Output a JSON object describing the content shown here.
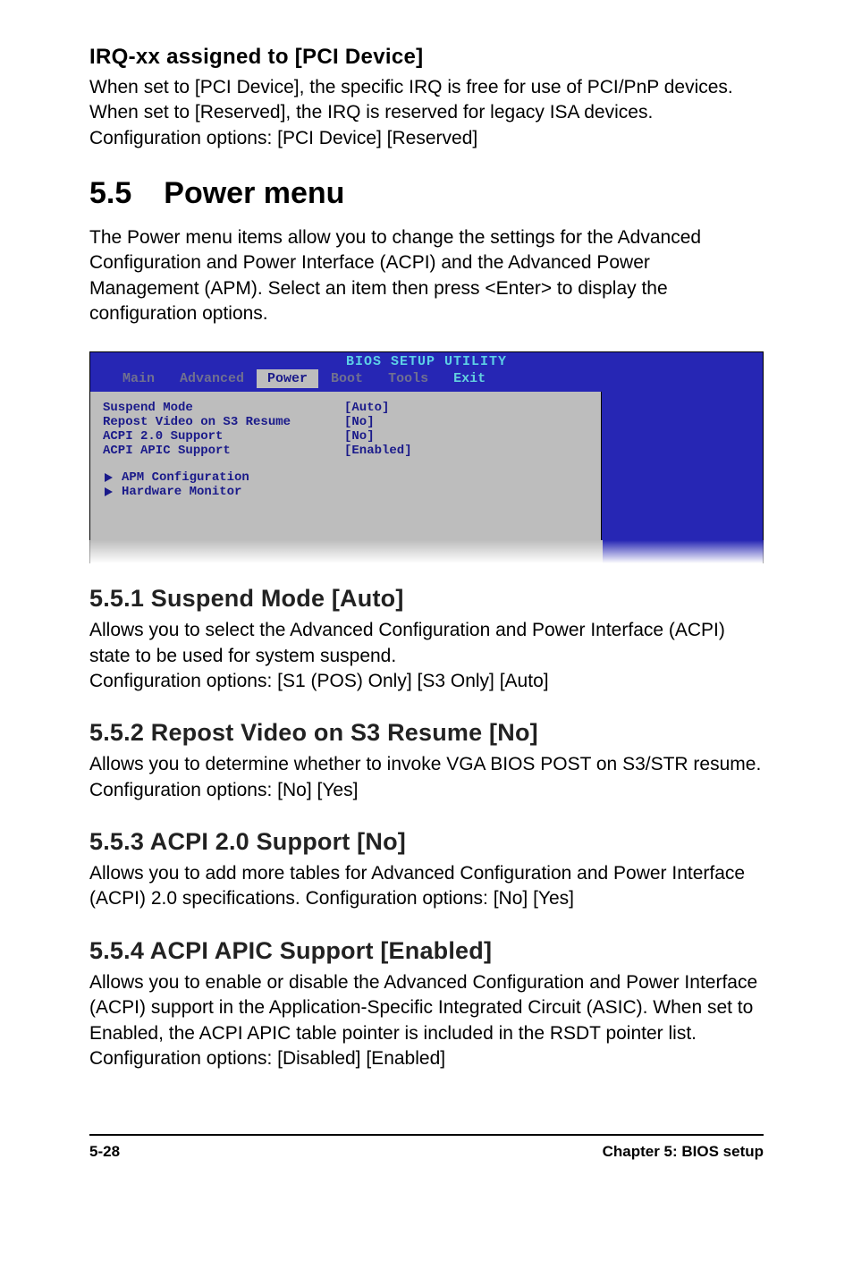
{
  "sec_irq": {
    "title": "IRQ-xx assigned to [PCI Device]",
    "body": "When set to [PCI Device], the specific IRQ is free for use of PCI/PnP devices. When set to [Reserved], the IRQ is reserved for legacy ISA devices. Configuration options: [PCI Device] [Reserved]"
  },
  "chapter": {
    "num": "5.5",
    "title": "Power menu",
    "body": "The Power menu items allow you to change the settings for the Advanced Configuration and Power Interface (ACPI) and the Advanced Power Management (APM). Select an item then press <Enter> to display the configuration options."
  },
  "bios": {
    "title": "BIOS SETUP UTILITY",
    "tabs": [
      "Main",
      "Advanced",
      "Power",
      "Boot",
      "Tools",
      "Exit"
    ],
    "active_tab_index": 2,
    "bright_tab_indexes": [
      5
    ],
    "rows": [
      {
        "k": "Suspend Mode",
        "v": "[Auto]"
      },
      {
        "k": "Repost Video on S3 Resume",
        "v": "[No]"
      },
      {
        "k": "ACPI 2.0 Support",
        "v": "[No]"
      },
      {
        "k": "ACPI APIC Support",
        "v": "[Enabled]"
      }
    ],
    "subitems": [
      "APM Configuration",
      "Hardware Monitor"
    ],
    "colors": {
      "header_bg": "#2626b4",
      "header_title": "#5dd0e6",
      "tab_inactive": "#707090",
      "tab_active_bg": "#bdbdbd",
      "tab_active_fg": "#1a1a8a",
      "tab_bright": "#63d2de",
      "body_bg": "#bdbdbd",
      "body_fg": "#1a1a8a",
      "side_bg": "#2626b4"
    }
  },
  "s551": {
    "title": "5.5.1   Suspend Mode [Auto]",
    "body1": "Allows you to select the Advanced Configuration and Power Interface (ACPI) state to be used for system suspend.",
    "body2": "Configuration options: [S1 (POS) Only] [S3 Only] [Auto]"
  },
  "s552": {
    "title": "5.5.2   Repost Video on S3 Resume [No]",
    "body": "Allows you to determine whether to invoke VGA BIOS POST on S3/STR resume. Configuration options: [No] [Yes]"
  },
  "s553": {
    "title": "5.5.3   ACPI 2.0 Support [No]",
    "body": "Allows you to add more tables for Advanced Configuration and Power Interface (ACPI) 2.0 specifications. Configuration options: [No] [Yes]"
  },
  "s554": {
    "title": "5.5.4   ACPI APIC Support [Enabled]",
    "body": "Allows you to enable or disable the Advanced Configuration and Power Interface (ACPI) support in the Application-Specific Integrated Circuit (ASIC). When set to Enabled, the ACPI APIC table pointer is included in the RSDT pointer list. Configuration options: [Disabled] [Enabled]"
  },
  "footer": {
    "left": "5-28",
    "right": "Chapter 5: BIOS setup"
  }
}
